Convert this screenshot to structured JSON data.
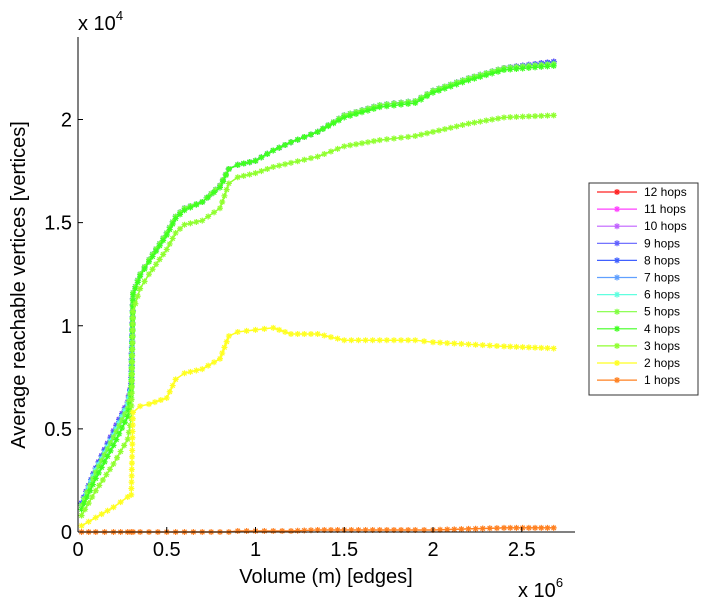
{
  "chart_data": {
    "type": "line",
    "title": "",
    "xlabel": "Volume (m) [edges]",
    "ylabel": "Average reachable vertices [vertices]",
    "x_multiplier_label": "x 10",
    "x_multiplier_exp": "6",
    "y_multiplier_label": "x 10",
    "y_multiplier_exp": "4",
    "xlim": [
      0,
      2.8
    ],
    "ylim": [
      0,
      2.4
    ],
    "xticks": [
      0,
      0.5,
      1,
      1.5,
      2,
      2.5
    ],
    "xtick_labels": [
      "0",
      "0.5",
      "1",
      "1.5",
      "2",
      "2.5"
    ],
    "yticks": [
      0,
      0.5,
      1,
      1.5,
      2
    ],
    "ytick_labels": [
      "0",
      "0.5",
      "1",
      "1.5",
      "2"
    ],
    "grid": false,
    "legend_placement": "right, outside",
    "marker": "*",
    "x": [
      0.02,
      0.1,
      0.2,
      0.28,
      0.3,
      0.31,
      0.35,
      0.4,
      0.5,
      0.55,
      0.6,
      0.7,
      0.8,
      0.85,
      0.9,
      1.0,
      1.1,
      1.2,
      1.35,
      1.5,
      1.7,
      1.9,
      2.0,
      2.2,
      2.4,
      2.68
    ],
    "series": [
      {
        "name": "12 hops",
        "color": "#ff2020",
        "values": [
          0.14,
          0.31,
          0.49,
          0.63,
          0.72,
          1.16,
          1.25,
          1.32,
          1.45,
          1.53,
          1.57,
          1.6,
          1.68,
          1.76,
          1.78,
          1.8,
          1.85,
          1.89,
          1.94,
          2.02,
          2.07,
          2.09,
          2.14,
          2.2,
          2.25,
          2.28
        ]
      },
      {
        "name": "11 hops",
        "color": "#ff40ff",
        "values": [
          0.14,
          0.31,
          0.49,
          0.63,
          0.72,
          1.16,
          1.25,
          1.32,
          1.45,
          1.53,
          1.57,
          1.6,
          1.68,
          1.76,
          1.78,
          1.8,
          1.85,
          1.89,
          1.94,
          2.02,
          2.07,
          2.09,
          2.14,
          2.2,
          2.25,
          2.28
        ]
      },
      {
        "name": "10 hops",
        "color": "#c060ff",
        "values": [
          0.14,
          0.31,
          0.49,
          0.63,
          0.72,
          1.16,
          1.25,
          1.32,
          1.45,
          1.53,
          1.57,
          1.6,
          1.68,
          1.76,
          1.78,
          1.8,
          1.85,
          1.89,
          1.94,
          2.02,
          2.07,
          2.09,
          2.14,
          2.2,
          2.25,
          2.28
        ]
      },
      {
        "name": "9 hops",
        "color": "#6060ff",
        "values": [
          0.14,
          0.31,
          0.49,
          0.63,
          0.72,
          1.16,
          1.25,
          1.32,
          1.45,
          1.53,
          1.57,
          1.6,
          1.68,
          1.76,
          1.78,
          1.8,
          1.85,
          1.89,
          1.94,
          2.02,
          2.07,
          2.09,
          2.14,
          2.2,
          2.25,
          2.28
        ]
      },
      {
        "name": "8 hops",
        "color": "#4060ff",
        "values": [
          0.14,
          0.31,
          0.48,
          0.62,
          0.72,
          1.16,
          1.25,
          1.32,
          1.45,
          1.53,
          1.57,
          1.6,
          1.68,
          1.76,
          1.78,
          1.8,
          1.85,
          1.89,
          1.94,
          2.02,
          2.07,
          2.09,
          2.14,
          2.2,
          2.25,
          2.28
        ]
      },
      {
        "name": "7 hops",
        "color": "#60a0ff",
        "values": [
          0.13,
          0.3,
          0.47,
          0.62,
          0.71,
          1.16,
          1.25,
          1.32,
          1.45,
          1.53,
          1.57,
          1.6,
          1.68,
          1.76,
          1.78,
          1.8,
          1.85,
          1.89,
          1.94,
          2.02,
          2.07,
          2.09,
          2.14,
          2.2,
          2.25,
          2.27
        ]
      },
      {
        "name": "6 hops",
        "color": "#60ffe0",
        "values": [
          0.13,
          0.3,
          0.47,
          0.62,
          0.71,
          1.16,
          1.25,
          1.32,
          1.45,
          1.53,
          1.57,
          1.6,
          1.68,
          1.76,
          1.78,
          1.8,
          1.85,
          1.89,
          1.94,
          2.02,
          2.07,
          2.09,
          2.14,
          2.2,
          2.25,
          2.27
        ]
      },
      {
        "name": "5 hops",
        "color": "#80ff40",
        "values": [
          0.13,
          0.29,
          0.46,
          0.6,
          0.7,
          1.16,
          1.25,
          1.32,
          1.45,
          1.53,
          1.57,
          1.6,
          1.68,
          1.76,
          1.78,
          1.8,
          1.85,
          1.89,
          1.94,
          2.02,
          2.07,
          2.09,
          2.14,
          2.2,
          2.25,
          2.27
        ]
      },
      {
        "name": "4 hops",
        "color": "#40ff20",
        "values": [
          0.11,
          0.26,
          0.42,
          0.56,
          0.65,
          1.15,
          1.24,
          1.31,
          1.44,
          1.52,
          1.56,
          1.6,
          1.67,
          1.76,
          1.78,
          1.8,
          1.85,
          1.89,
          1.94,
          2.01,
          2.06,
          2.08,
          2.13,
          2.19,
          2.24,
          2.26
        ]
      },
      {
        "name": "3 hops",
        "color": "#90ff30",
        "values": [
          0.08,
          0.2,
          0.33,
          0.45,
          0.55,
          1.07,
          1.18,
          1.25,
          1.37,
          1.45,
          1.49,
          1.51,
          1.57,
          1.69,
          1.72,
          1.74,
          1.77,
          1.79,
          1.82,
          1.87,
          1.9,
          1.92,
          1.94,
          1.98,
          2.01,
          2.02
        ]
      },
      {
        "name": "2 hops",
        "color": "#ffff20",
        "values": [
          0.03,
          0.07,
          0.12,
          0.17,
          0.18,
          0.58,
          0.61,
          0.62,
          0.65,
          0.74,
          0.77,
          0.79,
          0.84,
          0.95,
          0.97,
          0.98,
          0.99,
          0.96,
          0.96,
          0.93,
          0.93,
          0.93,
          0.92,
          0.91,
          0.9,
          0.89
        ]
      },
      {
        "name": "1 hops",
        "color": "#ff8020",
        "values": [
          0,
          0,
          0,
          0,
          0,
          0,
          0,
          0,
          0,
          0,
          0,
          0,
          0,
          0,
          0.005,
          0.005,
          0.005,
          0.005,
          0.01,
          0.01,
          0.01,
          0.01,
          0.01,
          0.015,
          0.02,
          0.02
        ]
      }
    ]
  }
}
